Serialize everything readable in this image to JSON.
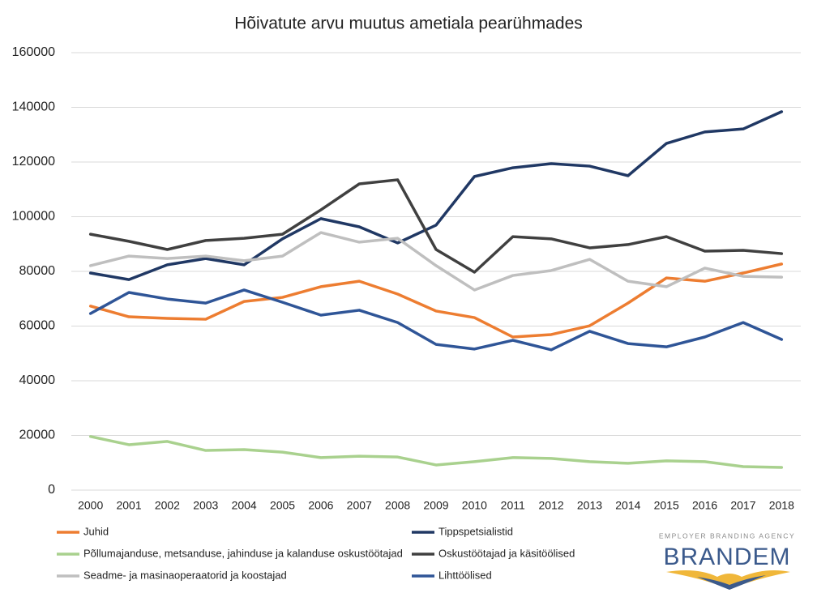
{
  "chart_data": {
    "type": "line",
    "title": "Hõivatute arvu muutus ametiala pearühmades",
    "categories": [
      "2000",
      "2001",
      "2002",
      "2003",
      "2004",
      "2005",
      "2006",
      "2007",
      "2008",
      "2009",
      "2010",
      "2011",
      "2012",
      "2013",
      "2014",
      "2015",
      "2016",
      "2017",
      "2018"
    ],
    "ylim": [
      0,
      160000
    ],
    "yticks": [
      0,
      20000,
      40000,
      60000,
      80000,
      100000,
      120000,
      140000,
      160000
    ],
    "grid": true,
    "legend": "bottom",
    "series": [
      {
        "name": "Juhid",
        "color": "#ed7d31",
        "values": [
          67300,
          63400,
          62800,
          62500,
          69000,
          70500,
          74400,
          76400,
          71700,
          65500,
          63100,
          56000,
          56900,
          60100,
          68400,
          77600,
          76400,
          79400,
          82700
        ]
      },
      {
        "name": "Tippspetsialistid",
        "color": "#203864",
        "values": [
          79400,
          77000,
          82400,
          84700,
          82400,
          91900,
          99300,
          96300,
          90400,
          96900,
          114700,
          117900,
          119400,
          118500,
          115000,
          126800,
          131000,
          132100,
          138400
        ]
      },
      {
        "name": "Põllumajanduse, metsanduse, jahinduse ja kalanduse oskustöötajad",
        "color": "#a9d18e",
        "values": [
          19600,
          16600,
          17800,
          14500,
          14800,
          13900,
          11900,
          12400,
          12100,
          9200,
          10400,
          11900,
          11600,
          10400,
          9800,
          10700,
          10400,
          8600,
          8300
        ]
      },
      {
        "name": "Oskustöötajad ja käsitöölised",
        "color": "#404040",
        "values": [
          93600,
          91000,
          88000,
          91300,
          92100,
          93600,
          102500,
          112000,
          113500,
          88000,
          79700,
          92700,
          91900,
          88600,
          89800,
          92700,
          87400,
          87700,
          86500
        ]
      },
      {
        "name": "Seadme- ja masinaoperaatorid ja koostajad",
        "color": "#bfbfbf",
        "values": [
          82100,
          85600,
          84700,
          85600,
          83900,
          85600,
          94200,
          90700,
          92100,
          82100,
          73200,
          78500,
          80300,
          84400,
          76400,
          74400,
          81200,
          78200,
          77900
        ]
      },
      {
        "name": "Lihttöölised",
        "color": "#2f5597",
        "values": [
          64600,
          72300,
          69900,
          68400,
          73200,
          68700,
          64000,
          65800,
          61300,
          53300,
          51600,
          54800,
          51300,
          58100,
          53600,
          52400,
          56000,
          61300,
          55100
        ]
      }
    ]
  },
  "logo": {
    "tagline": "EMPLOYER BRANDING AGENCY",
    "name": "BRANDEM"
  }
}
